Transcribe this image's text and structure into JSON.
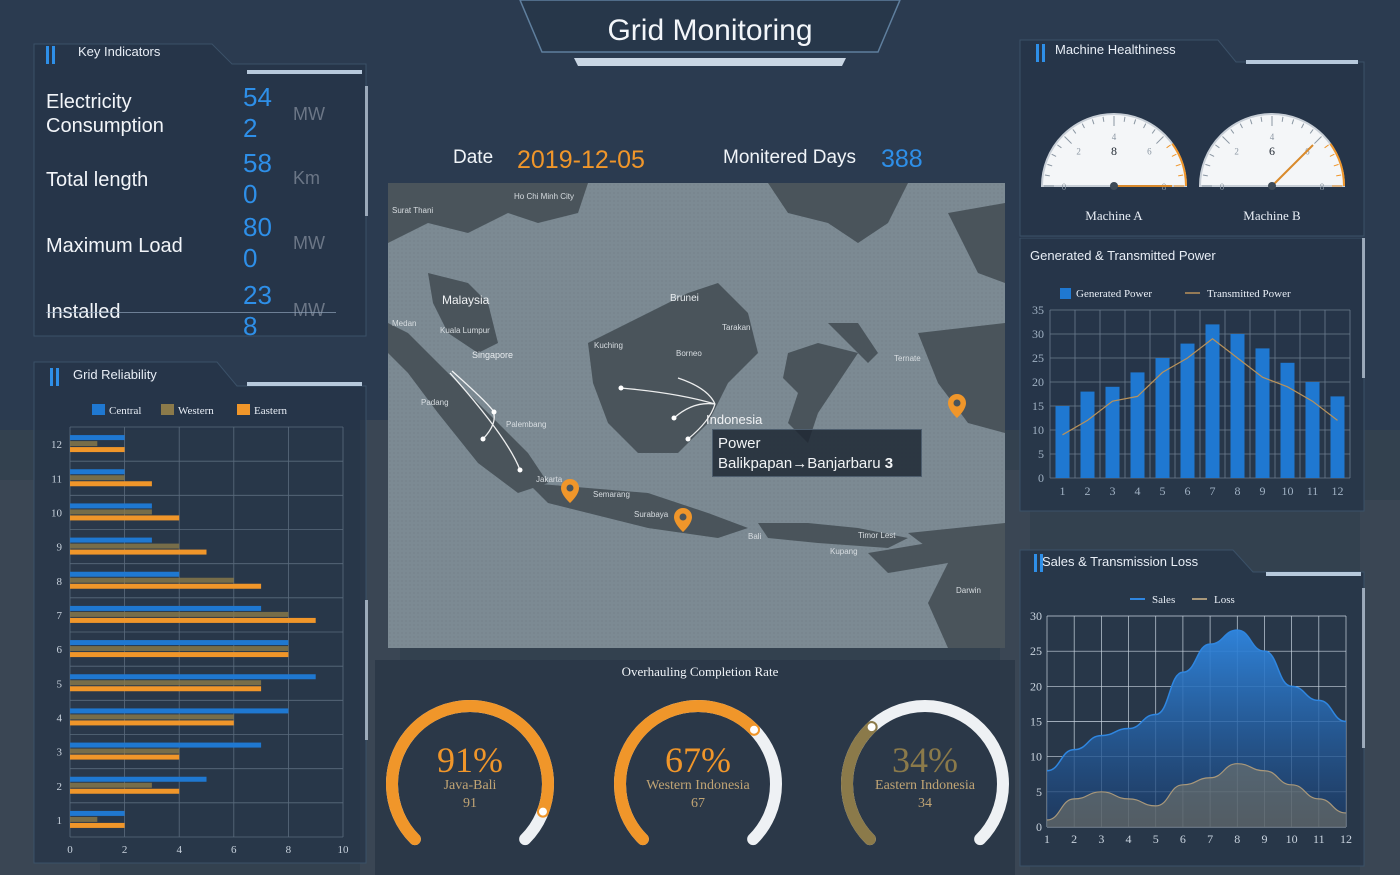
{
  "header": {
    "title": "Grid Monitoring"
  },
  "key_indicators": {
    "title": "Key Indicators",
    "items": [
      {
        "label": "Electricity Consumption",
        "value": "542",
        "unit": "MW"
      },
      {
        "label": "Total length",
        "value": "580",
        "unit": "Km"
      },
      {
        "label": "Maximum Load",
        "value": "800",
        "unit": "MW"
      },
      {
        "label": "Installed",
        "value": "238",
        "unit": "MW"
      }
    ]
  },
  "info_bar": {
    "date_label": "Date",
    "date_value": "2019-12-05",
    "days_label": "Monitered Days",
    "days_value": "388"
  },
  "map": {
    "labels": [
      "Malaysia",
      "Indonesia",
      "Singapore",
      "Brunei",
      "Kuala Lumpur",
      "Medan",
      "Palembang",
      "Jakarta",
      "Semarang",
      "Surabaya",
      "Bali",
      "Kupang",
      "Timor Lest",
      "Darwin",
      "Tarakan",
      "Borneo",
      "Kuching",
      "Padang",
      "Ho Chi Minh City",
      "Surat Thani",
      "Ternate"
    ],
    "tooltip": {
      "title": "Power",
      "route": "Balikpapan→Banjarbaru",
      "value": "3"
    }
  },
  "overhauling": {
    "title": "Overhauling Completion Rate",
    "gauges": [
      {
        "percent": "91%",
        "name": "Java-Bali",
        "value": "91",
        "rate": 0.91
      },
      {
        "percent": "67%",
        "name": "Western Indonesia",
        "value": "67",
        "rate": 0.67
      },
      {
        "percent": "34%",
        "name": "Eastern Indonesia",
        "value": "34",
        "rate": 0.34
      }
    ]
  },
  "machine_health": {
    "title": "Machine Healthiness",
    "machines": [
      {
        "name": "Machine A",
        "value": 8,
        "ticks": [
          "0",
          "2",
          "4",
          "6",
          "8"
        ]
      },
      {
        "name": "Machine B",
        "value": 6,
        "ticks": [
          "0",
          "2",
          "4",
          "6",
          "8"
        ]
      }
    ]
  },
  "grid_reliability": {
    "title": "Grid Reliability"
  },
  "generated_power": {
    "title": "Generated & Transmitted Power"
  },
  "sales_loss": {
    "title": "Sales & Transmission Loss"
  },
  "colors": {
    "blue": "#1f78d1",
    "orange": "#f0962a",
    "olive": "#8b7a4a",
    "accent_blue": "#2e8fe8"
  },
  "chart_data": [
    {
      "id": "grid_reliability",
      "type": "bar",
      "orientation": "horizontal",
      "categories": [
        "1",
        "2",
        "3",
        "4",
        "5",
        "6",
        "7",
        "8",
        "9",
        "10",
        "11",
        "12"
      ],
      "series": [
        {
          "name": "Central",
          "values": [
            2,
            5,
            7,
            8,
            9,
            8,
            7,
            4,
            3,
            3,
            2,
            2
          ]
        },
        {
          "name": "Western",
          "values": [
            1,
            3,
            4,
            6,
            7,
            8,
            8,
            6,
            4,
            3,
            2,
            1
          ]
        },
        {
          "name": "Eastern",
          "values": [
            2,
            4,
            4,
            6,
            7,
            8,
            9,
            7,
            5,
            4,
            3,
            2
          ]
        }
      ],
      "xlim": [
        0,
        10
      ],
      "xticks": [
        "0",
        "2",
        "4",
        "6",
        "8",
        "10"
      ],
      "legend": "top"
    },
    {
      "id": "generated_power",
      "type": "bar",
      "categories": [
        "1",
        "2",
        "3",
        "4",
        "5",
        "6",
        "7",
        "8",
        "9",
        "10",
        "11",
        "12"
      ],
      "series": [
        {
          "name": "Generated Power",
          "type": "bar",
          "values": [
            15,
            18,
            19,
            22,
            25,
            28,
            32,
            30,
            27,
            24,
            20,
            17
          ]
        },
        {
          "name": "Transmitted Power",
          "type": "line",
          "values": [
            9,
            12,
            16,
            17,
            22,
            25,
            29,
            25,
            21,
            19,
            16,
            12
          ]
        }
      ],
      "ylim": [
        0,
        35
      ],
      "yticks": [
        "0",
        "5",
        "10",
        "15",
        "20",
        "25",
        "30",
        "35"
      ],
      "legend": "top"
    },
    {
      "id": "sales_loss",
      "type": "area",
      "categories": [
        "1",
        "2",
        "3",
        "4",
        "5",
        "6",
        "7",
        "8",
        "9",
        "10",
        "11",
        "12"
      ],
      "series": [
        {
          "name": "Sales",
          "values": [
            8,
            11,
            13,
            14,
            16,
            22,
            26,
            28,
            25,
            20,
            18,
            15
          ]
        },
        {
          "name": "Loss",
          "values": [
            1,
            4,
            5,
            4,
            3,
            6,
            7,
            9,
            8,
            6,
            4,
            2
          ]
        }
      ],
      "ylim": [
        0,
        30
      ],
      "yticks": [
        "0",
        "5",
        "10",
        "15",
        "20",
        "25",
        "30"
      ],
      "legend": "top"
    }
  ]
}
